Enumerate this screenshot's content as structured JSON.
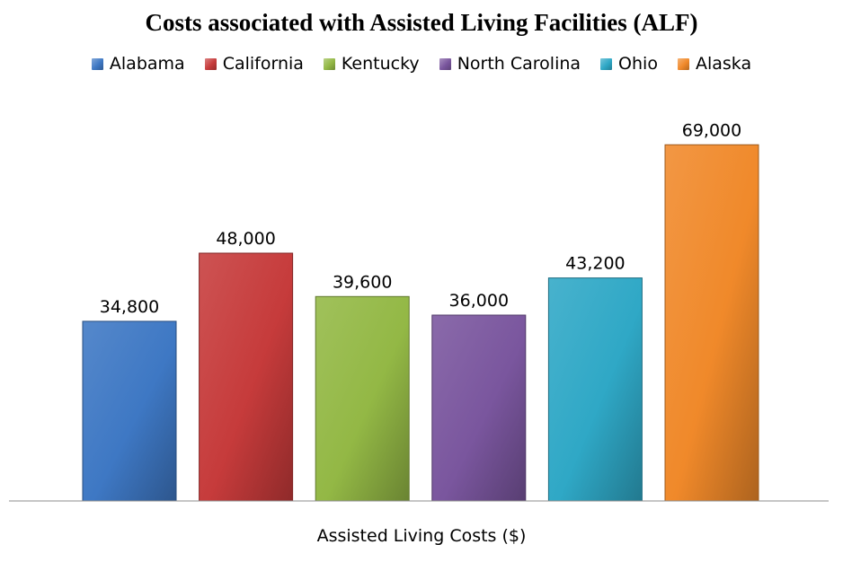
{
  "chart_data": {
    "type": "bar",
    "title": "Costs associated with Assisted Living Facilities (ALF)",
    "xlabel": "Assisted Living Costs ($)",
    "ylabel": "",
    "ylim": [
      0,
      80000
    ],
    "grid": false,
    "legend_position": "top",
    "categories": [
      "Assisted Living Costs ($)"
    ],
    "series": [
      {
        "name": "Alabama",
        "values": [
          34800
        ],
        "label": "34,800",
        "color": "#3E78C4"
      },
      {
        "name": "California",
        "values": [
          48000
        ],
        "label": "48,000",
        "color": "#C63B3B"
      },
      {
        "name": "Kentucky",
        "values": [
          39600
        ],
        "label": "39,600",
        "color": "#93B845"
      },
      {
        "name": "North Carolina",
        "values": [
          36000
        ],
        "label": "36,000",
        "color": "#7A569E"
      },
      {
        "name": "Ohio",
        "values": [
          43200
        ],
        "label": "43,200",
        "color": "#2FA8C6"
      },
      {
        "name": "Alaska",
        "values": [
          69000
        ],
        "label": "69,000",
        "color": "#F0892A"
      }
    ]
  }
}
